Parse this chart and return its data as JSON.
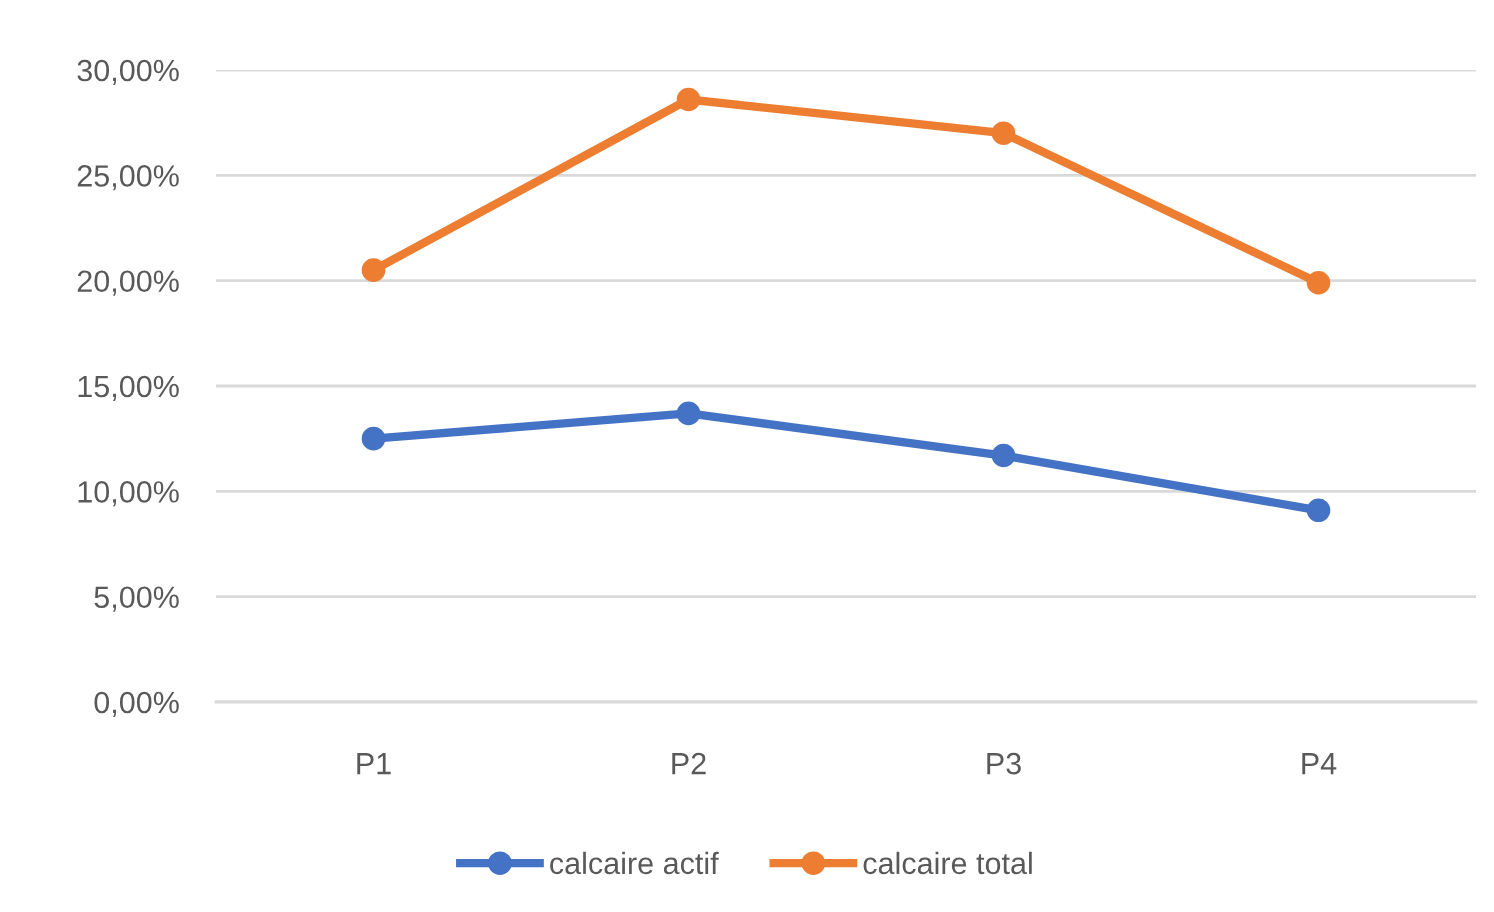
{
  "chart_data": {
    "type": "line",
    "categories": [
      "P1",
      "P2",
      "P3",
      "P4"
    ],
    "series": [
      {
        "name": "calcaire actif",
        "color": "#4472c4",
        "values": [
          12.5,
          13.7,
          11.7,
          9.1
        ]
      },
      {
        "name": "calcaire total",
        "color": "#ed7d31",
        "values": [
          20.5,
          28.6,
          27.0,
          19.9
        ]
      }
    ],
    "ylim": [
      0,
      30
    ],
    "yticks": [
      {
        "value": 0,
        "label": "0,00%"
      },
      {
        "value": 5,
        "label": "5,00%"
      },
      {
        "value": 10,
        "label": "10,00%"
      },
      {
        "value": 15,
        "label": "15,00%"
      },
      {
        "value": 20,
        "label": "20,00%"
      },
      {
        "value": 25,
        "label": "25,00%"
      },
      {
        "value": 30,
        "label": "30,00%"
      }
    ],
    "grid": "y",
    "legend": "bottom",
    "marker": "circle",
    "line_style": "solid"
  }
}
